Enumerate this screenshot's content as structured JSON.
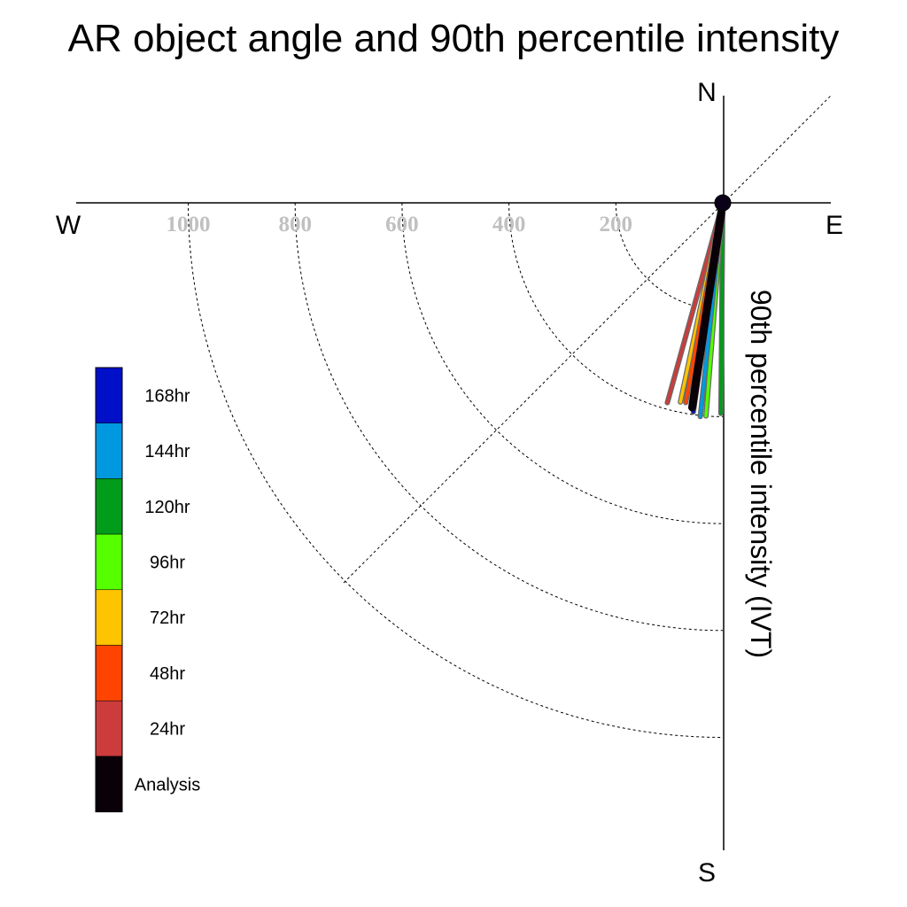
{
  "chart_data": {
    "type": "polar_vector",
    "title": "AR object angle and 90th percentile intensity",
    "directions": {
      "north": "N",
      "south": "S",
      "east": "E",
      "west": "W"
    },
    "radial_axis_label": "90th percentile intensity (IVT)",
    "radial_ticks": [
      "1000",
      "800",
      "600",
      "400",
      "200"
    ],
    "grid": true,
    "legend_position": "left",
    "series": [
      {
        "name": "168hr",
        "color": "#0010c8",
        "angle_deg": 188,
        "intensity": 395
      },
      {
        "name": "144hr",
        "color": "#0099e0",
        "angle_deg": 186,
        "intensity": 402
      },
      {
        "name": "120hr",
        "color": "#009c1a",
        "angle_deg": 180.5,
        "intensity": 394
      },
      {
        "name": "96hr",
        "color": "#55ff00",
        "angle_deg": 184.5,
        "intensity": 400
      },
      {
        "name": "72hr",
        "color": "#ffc400",
        "angle_deg": 192,
        "intensity": 381
      },
      {
        "name": "48hr",
        "color": "#ff4400",
        "angle_deg": 190.5,
        "intensity": 380
      },
      {
        "name": "24hr",
        "color": "#cc3c3c",
        "angle_deg": 195.5,
        "intensity": 388
      },
      {
        "name": "Analysis",
        "color": "#0a0008",
        "angle_deg": 188.5,
        "intensity": 387
      }
    ]
  }
}
